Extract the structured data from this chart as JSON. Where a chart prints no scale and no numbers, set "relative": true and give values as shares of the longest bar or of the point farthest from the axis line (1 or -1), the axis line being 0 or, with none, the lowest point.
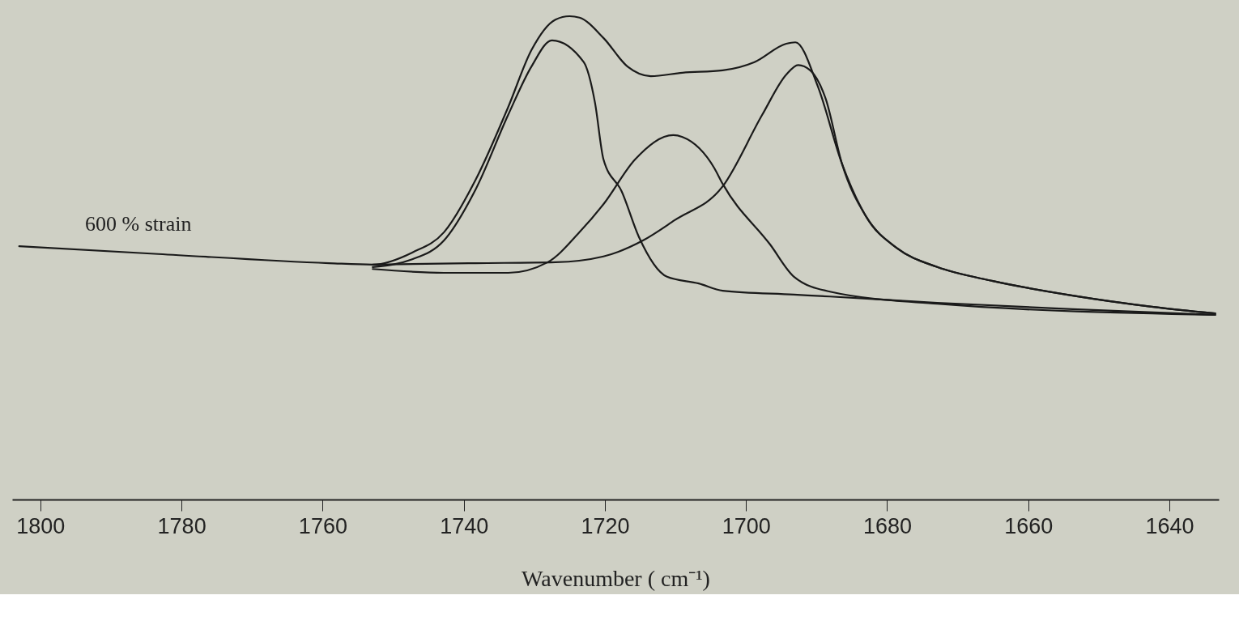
{
  "chart_data": {
    "type": "line",
    "relative": true,
    "xlabel": "Wavenumber ( cm⁻¹)",
    "xlim": [
      1804,
      1633
    ],
    "xticks": [
      1800,
      1780,
      1760,
      1740,
      1720,
      1700,
      1680,
      1660,
      1640
    ],
    "grid": false,
    "legend": false,
    "marker": "none",
    "line_style": "solid",
    "annotations": [
      "600 % strain"
    ],
    "series": [
      {
        "color": "#1a1a1a",
        "x": [
          1803.0,
          1783.3,
          1759.1,
          1752.9,
          1747.3,
          1742.8,
          1738.3,
          1733.7,
          1730.4,
          1727.0,
          1725.0,
          1723.6,
          1720.2,
          1716.8,
          1713.5,
          1709.0,
          1703.3,
          1698.8,
          1694.3,
          1693.0,
          1689.8,
          1686.4,
          1683.0,
          1678.5,
          1672.9,
          1665.0,
          1653.7,
          1642.5,
          1633.5
        ],
        "values": [
          0.524,
          0.508,
          0.489,
          0.486,
          0.511,
          0.553,
          0.662,
          0.812,
          0.93,
          0.993,
          1.0,
          0.997,
          0.955,
          0.896,
          0.876,
          0.883,
          0.888,
          0.905,
          0.943,
          0.946,
          0.854,
          0.695,
          0.586,
          0.519,
          0.481,
          0.452,
          0.422,
          0.399,
          0.385
        ]
      },
      {
        "color": "#1a1a1a",
        "x": [
          1752.9,
          1747.3,
          1742.8,
          1738.3,
          1733.7,
          1730.4,
          1727.5,
          1723.0,
          1721.4,
          1720.2,
          1717.6,
          1715.2,
          1711.2,
          1706.7,
          1703.3,
          1693.2,
          1688.1,
          1672.9,
          1653.7,
          1633.5
        ],
        "values": [
          0.481,
          0.497,
          0.536,
          0.642,
          0.796,
          0.896,
          0.95,
          0.905,
          0.821,
          0.704,
          0.637,
          0.544,
          0.461,
          0.447,
          0.432,
          0.424,
          0.42,
          0.407,
          0.394,
          0.382
        ]
      },
      {
        "color": "#1a1a1a",
        "x": [
          1752.9,
          1742.8,
          1733.7,
          1728.1,
          1723.6,
          1720.2,
          1715.7,
          1710.3,
          1709.0,
          1704.5,
          1703.3,
          1696.6,
          1693.2,
          1688.1,
          1672.9,
          1633.5
        ],
        "values": [
          0.477,
          0.469,
          0.469,
          0.491,
          0.553,
          0.611,
          0.704,
          0.754,
          0.75,
          0.686,
          0.653,
          0.528,
          0.461,
          0.43,
          0.405,
          0.382
        ]
      },
      {
        "color": "#1a1a1a",
        "x": [
          1752.9,
          1738.3,
          1727.0,
          1720.2,
          1714.6,
          1710.1,
          1703.3,
          1697.7,
          1694.3,
          1692.6,
          1690.9,
          1688.7,
          1686.4,
          1683.0,
          1678.5,
          1672.9,
          1665.0,
          1653.7,
          1642.5,
          1633.5
        ],
        "values": [
          0.486,
          0.489,
          0.491,
          0.503,
          0.536,
          0.578,
          0.648,
          0.796,
          0.879,
          0.899,
          0.888,
          0.829,
          0.695,
          0.586,
          0.519,
          0.481,
          0.452,
          0.422,
          0.399,
          0.385
        ]
      }
    ]
  }
}
